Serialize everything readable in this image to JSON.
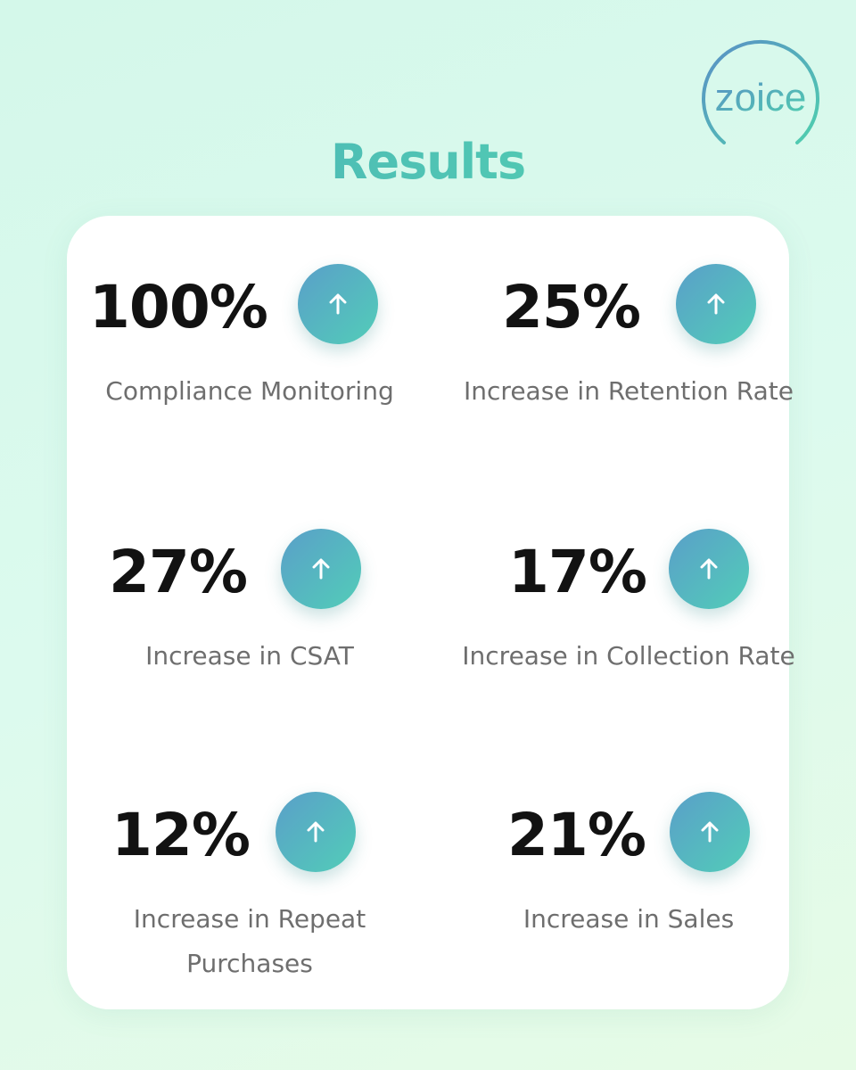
{
  "brand": {
    "logo_text": "zoice"
  },
  "title": "Results",
  "stats": [
    {
      "value": "100%",
      "label": "Compliance Monitoring",
      "icon": "arrow-up-icon"
    },
    {
      "value": "25%",
      "label": "Increase in Retention Rate",
      "icon": "arrow-up-icon"
    },
    {
      "value": "27%",
      "label": "Increase in CSAT",
      "icon": "arrow-up-icon"
    },
    {
      "value": "17%",
      "label": "Increase in Collection Rate",
      "icon": "arrow-up-icon"
    },
    {
      "value": "12%",
      "label": "Increase in Repeat Purchases",
      "icon": "arrow-up-icon"
    },
    {
      "value": "21%",
      "label": "Increase in Sales",
      "icon": "arrow-up-icon"
    }
  ],
  "colors": {
    "accent_start": "#5a9fc9",
    "accent_end": "#52cdb8",
    "background": "#d4f8ea"
  }
}
